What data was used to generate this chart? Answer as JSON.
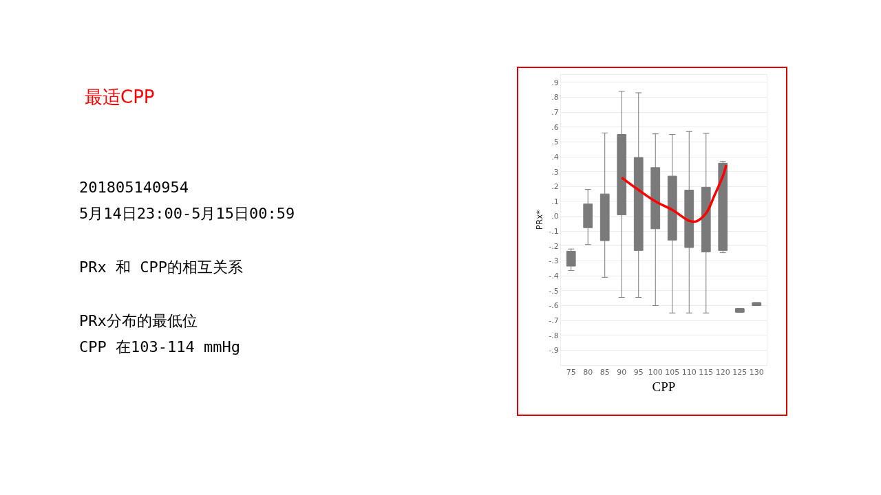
{
  "chart_data": {
    "type": "box",
    "title": "最适CPP",
    "xlabel": "CPP",
    "ylabel": "PRx*",
    "x": [
      75,
      80,
      85,
      90,
      95,
      100,
      105,
      110,
      115,
      120,
      125,
      130
    ],
    "xlim": [
      72,
      133
    ],
    "xticks": [
      75,
      80,
      85,
      90,
      95,
      100,
      105,
      110,
      115,
      120,
      125,
      130
    ],
    "ylim": [
      -1,
      0.95
    ],
    "yticks": [
      {
        "value": 0.9,
        "label": ".9"
      },
      {
        "value": 0.8,
        "label": ".8"
      },
      {
        "value": 0.7,
        "label": ".7"
      },
      {
        "value": 0.6,
        "label": ".6"
      },
      {
        "value": 0.5,
        "label": ".5"
      },
      {
        "value": 0.4,
        "label": ".4"
      },
      {
        "value": 0.3,
        "label": ".3"
      },
      {
        "value": 0.2,
        "label": ".2"
      },
      {
        "value": 0.1,
        "label": ".1"
      },
      {
        "value": 0,
        "label": ".0"
      },
      {
        "value": -0.1,
        "label": "-.1"
      },
      {
        "value": -0.2,
        "label": "-.2"
      },
      {
        "value": -0.3,
        "label": "-.3"
      },
      {
        "value": -0.4,
        "label": "-.4"
      },
      {
        "value": -0.5,
        "label": "-.5"
      },
      {
        "value": -0.6,
        "label": "-.6"
      },
      {
        "value": -0.7,
        "label": "-.7"
      },
      {
        "value": -0.8,
        "label": "-.8"
      },
      {
        "value": -0.9,
        "label": "-.9"
      }
    ],
    "grid": "y",
    "series": [
      {
        "color": "#7a7a7a",
        "boxes": [
          {
            "low": -0.365,
            "q1": -0.335,
            "median": -0.28,
            "q3": -0.235,
            "high": -0.22
          },
          {
            "low": -0.19,
            "q1": -0.077,
            "median": -0.01,
            "q3": 0.083,
            "high": 0.18
          },
          {
            "low": -0.41,
            "q1": -0.164,
            "median": 0.027,
            "q3": 0.15,
            "high": 0.56
          },
          {
            "low": -0.545,
            "q1": 0.01,
            "median": 0.32,
            "q3": 0.55,
            "high": 0.84
          },
          {
            "low": -0.545,
            "q1": -0.23,
            "median": 0.105,
            "q3": 0.395,
            "high": 0.83
          },
          {
            "low": -0.6,
            "q1": -0.084,
            "median": 0.06,
            "q3": 0.327,
            "high": 0.554
          },
          {
            "low": -0.65,
            "q1": -0.16,
            "median": 0,
            "q3": 0.27,
            "high": 0.55
          },
          {
            "low": -0.65,
            "q1": -0.21,
            "median": -0.01,
            "q3": 0.176,
            "high": 0.57
          },
          {
            "low": -0.65,
            "q1": -0.24,
            "median": 0.04,
            "q3": 0.195,
            "high": 0.557
          },
          {
            "low": -0.245,
            "q1": -0.23,
            "median": 0.35,
            "q3": 0.357,
            "high": 0.37
          },
          {
            "low": -0.645,
            "q1": -0.645,
            "median": -0.635,
            "q3": -0.62,
            "high": -0.62
          },
          {
            "low": -0.6,
            "q1": -0.6,
            "median": -0.59,
            "q3": -0.58,
            "high": -0.58
          }
        ]
      },
      {
        "type": "line",
        "color": "#ff0000",
        "x": [
          90,
          95,
          100,
          105,
          110,
          112,
          115,
          117.5,
          120,
          121
        ],
        "values": [
          0.26,
          0.177,
          0.1,
          0.043,
          -0.03,
          -0.035,
          0.02,
          0.14,
          0.27,
          0.345
        ]
      }
    ],
    "annotations": [
      "201805140954",
      "5月14日23:00-5月15日00:59",
      "PRx 和 CPP的相互关系",
      "PRx分布的最低位",
      "CPP 在103-114 mmHg"
    ]
  }
}
